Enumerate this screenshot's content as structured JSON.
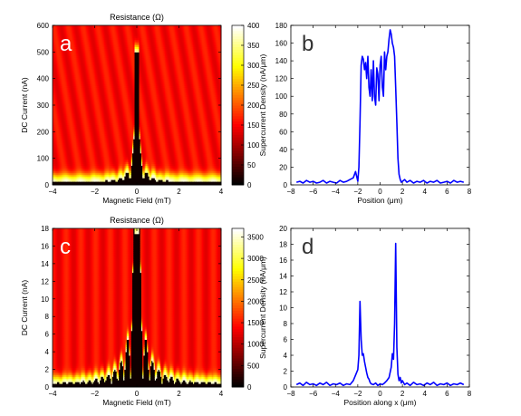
{
  "chart_data": [
    {
      "type": "heatmap",
      "panel_label": "a",
      "title": "Resistance (Ω)",
      "xlabel": "Magnetic Field (mT)",
      "ylabel": "DC Current (nA)",
      "xlim": [
        -4,
        4
      ],
      "ylim": [
        0,
        600
      ],
      "xticks": [
        "−4",
        "−2",
        "0",
        "2",
        "4"
      ],
      "yticks": [
        "0",
        "100",
        "200",
        "300",
        "400",
        "500",
        "600"
      ],
      "colorbar": {
        "min": 0,
        "max": 400,
        "ticks": [
          "0",
          "50",
          "100",
          "150",
          "200",
          "250",
          "300",
          "350",
          "400"
        ],
        "colormap": "hot"
      },
      "pattern": {
        "central_lobe_peak": 500,
        "side_lobe_peak": 110,
        "lobe_period_mT": 0.32,
        "lobe_decay_mT": 1.3
      }
    },
    {
      "type": "line",
      "panel_label": "b",
      "xlabel": "Position (μm)",
      "ylabel": "Supercurrent Density (nA/μm)",
      "xlim": [
        -8,
        8
      ],
      "ylim": [
        0,
        180
      ],
      "xticks": [
        "−8",
        "−6",
        "−4",
        "−2",
        "0",
        "2",
        "4",
        "6",
        "8"
      ],
      "yticks": [
        "0",
        "20",
        "40",
        "60",
        "80",
        "100",
        "120",
        "140",
        "160",
        "180"
      ],
      "color": "#0000ff",
      "x": [
        -7.5,
        -7.2,
        -6.9,
        -6.6,
        -6.3,
        -6.0,
        -5.7,
        -5.4,
        -5.1,
        -4.8,
        -4.5,
        -4.2,
        -3.9,
        -3.6,
        -3.3,
        -3.0,
        -2.7,
        -2.4,
        -2.2,
        -2.0,
        -1.9,
        -1.8,
        -1.7,
        -1.6,
        -1.5,
        -1.4,
        -1.3,
        -1.2,
        -1.1,
        -1.0,
        -0.9,
        -0.8,
        -0.7,
        -0.6,
        -0.5,
        -0.4,
        -0.3,
        -0.2,
        -0.1,
        0.0,
        0.1,
        0.2,
        0.3,
        0.4,
        0.5,
        0.6,
        0.7,
        0.8,
        0.9,
        1.0,
        1.1,
        1.2,
        1.3,
        1.4,
        1.5,
        1.6,
        1.7,
        1.8,
        1.9,
        2.0,
        2.2,
        2.4,
        2.7,
        3.0,
        3.3,
        3.6,
        3.9,
        4.2,
        4.5,
        4.8,
        5.1,
        5.4,
        5.7,
        6.0,
        6.3,
        6.6,
        6.9,
        7.2,
        7.5
      ],
      "y": [
        3,
        4,
        2,
        5,
        3,
        4,
        2,
        3,
        5,
        2,
        4,
        3,
        2,
        5,
        3,
        4,
        6,
        8,
        15,
        4,
        20,
        70,
        135,
        145,
        142,
        130,
        138,
        120,
        145,
        110,
        100,
        130,
        95,
        140,
        100,
        90,
        132,
        125,
        95,
        135,
        145,
        110,
        100,
        150,
        130,
        145,
        150,
        165,
        175,
        170,
        160,
        155,
        145,
        110,
        70,
        30,
        12,
        6,
        3,
        4,
        6,
        3,
        5,
        2,
        4,
        3,
        5,
        2,
        4,
        3,
        5,
        2,
        3,
        4,
        2,
        5,
        3,
        4,
        3
      ]
    },
    {
      "type": "heatmap",
      "panel_label": "c",
      "title": "Resistance (Ω)",
      "xlabel": "Magnetic Field (mT)",
      "ylabel": "DC Current (nA)",
      "xlim": [
        -4,
        4
      ],
      "ylim": [
        0,
        18
      ],
      "xticks": [
        "−4",
        "−2",
        "0",
        "2",
        "4"
      ],
      "yticks": [
        "0",
        "2",
        "4",
        "6",
        "8",
        "10",
        "12",
        "14",
        "16",
        "18"
      ],
      "colorbar": {
        "min": 0,
        "max": 3700,
        "ticks": [
          "0",
          "500",
          "1000",
          "1500",
          "2000",
          "2500",
          "3000",
          "3500"
        ],
        "colormap": "hot"
      },
      "pattern": {
        "central_lobe_peak": 17.5,
        "side_lobe_peak": 13,
        "lobe_period_mT": 0.3,
        "lobe_decay_mT": 2.4
      }
    },
    {
      "type": "line",
      "panel_label": "d",
      "xlabel": "Position along x (μm)",
      "ylabel": "Supercurrent Density (nA/μm)",
      "xlim": [
        -8,
        8
      ],
      "ylim": [
        0,
        20
      ],
      "xticks": [
        "−8",
        "−6",
        "−4",
        "−2",
        "0",
        "2",
        "4",
        "6",
        "8"
      ],
      "yticks": [
        "0",
        "2",
        "4",
        "6",
        "8",
        "10",
        "12",
        "14",
        "16",
        "18",
        "20"
      ],
      "color": "#0000ff",
      "x": [
        -7.5,
        -7.2,
        -6.9,
        -6.6,
        -6.3,
        -6.0,
        -5.7,
        -5.4,
        -5.1,
        -4.8,
        -4.5,
        -4.2,
        -3.9,
        -3.6,
        -3.3,
        -3.0,
        -2.7,
        -2.4,
        -2.2,
        -2.0,
        -1.9,
        -1.8,
        -1.7,
        -1.6,
        -1.5,
        -1.4,
        -1.3,
        -1.2,
        -1.1,
        -1.0,
        -0.9,
        -0.8,
        -0.6,
        -0.4,
        -0.2,
        0.0,
        0.2,
        0.4,
        0.6,
        0.8,
        1.0,
        1.1,
        1.2,
        1.3,
        1.4,
        1.5,
        1.6,
        1.7,
        1.8,
        1.9,
        2.0,
        2.2,
        2.4,
        2.7,
        3.0,
        3.3,
        3.6,
        3.9,
        4.2,
        4.5,
        4.8,
        5.1,
        5.4,
        5.7,
        6.0,
        6.3,
        6.6,
        6.9,
        7.2,
        7.5
      ],
      "y": [
        0.3,
        0.5,
        0.2,
        0.6,
        0.3,
        0.4,
        0.2,
        0.5,
        0.3,
        0.6,
        0.2,
        0.4,
        0.3,
        0.5,
        0.2,
        0.4,
        0.3,
        0.8,
        1.5,
        2.2,
        4,
        10.8,
        6,
        4,
        4.2,
        3.2,
        2.5,
        1.8,
        1.2,
        1.0,
        0.6,
        0.4,
        0.3,
        0.5,
        0.2,
        0.4,
        0.3,
        0.5,
        0.8,
        1.2,
        2.5,
        4.2,
        3.5,
        8,
        18.1,
        5,
        1.6,
        0.8,
        1.2,
        0.5,
        0.8,
        0.3,
        0.5,
        0.2,
        0.6,
        0.3,
        0.4,
        0.2,
        0.5,
        0.3,
        0.6,
        0.2,
        0.4,
        0.3,
        0.5,
        0.2,
        0.4,
        0.3,
        0.5,
        0.3
      ]
    }
  ]
}
